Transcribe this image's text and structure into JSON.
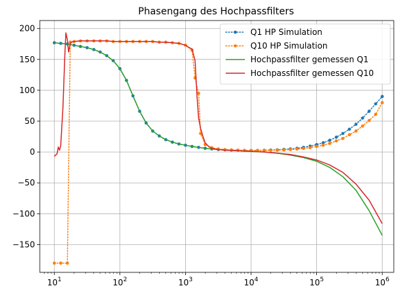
{
  "chart_data": {
    "type": "line",
    "title": "Phasengang des Hochpassfilters",
    "xlabel": "",
    "ylabel": "",
    "xscale": "log",
    "xlim": [
      6,
      1500000
    ],
    "ylim": [
      -195,
      213
    ],
    "x_ticks": [
      {
        "value": 10,
        "base": "10",
        "exp": "1"
      },
      {
        "value": 100,
        "base": "10",
        "exp": "2"
      },
      {
        "value": 1000,
        "base": "10",
        "exp": "3"
      },
      {
        "value": 10000,
        "base": "10",
        "exp": "4"
      },
      {
        "value": 100000,
        "base": "10",
        "exp": "5"
      },
      {
        "value": 1000000,
        "base": "10",
        "exp": "6"
      }
    ],
    "y_ticks": [
      {
        "value": 200,
        "label": "200"
      },
      {
        "value": 150,
        "label": "150"
      },
      {
        "value": 100,
        "label": "100"
      },
      {
        "value": 50,
        "label": "50"
      },
      {
        "value": 0,
        "label": "0"
      },
      {
        "value": -50,
        "label": "−50"
      },
      {
        "value": -100,
        "label": "−100"
      },
      {
        "value": -150,
        "label": "−150"
      }
    ],
    "grid": true,
    "legend_position": "top-right",
    "series": [
      {
        "name": "Q1 HP Simulation",
        "color": "#1f77b4",
        "style": "dotted-markers",
        "x": [
          10,
          12.5,
          15.8,
          20,
          25,
          31.6,
          40,
          50,
          63,
          79,
          100,
          126,
          158,
          200,
          251,
          316,
          398,
          501,
          631,
          794,
          1000,
          1259,
          1585,
          1995,
          2512,
          3162,
          3981,
          5012,
          6310,
          7943,
          10000,
          12589,
          15849,
          19953,
          25119,
          31623,
          39811,
          50119,
          63096,
          79433,
          100000,
          125893,
          158489,
          199526,
          251189,
          316228,
          398107,
          501187,
          630957,
          794328,
          1000000
        ],
        "y": [
          177,
          176,
          175,
          173,
          171,
          169,
          166,
          162,
          156,
          148,
          135,
          116,
          91,
          66,
          47,
          34,
          26,
          20,
          16,
          13,
          11,
          9,
          7.5,
          6,
          5,
          4,
          3.5,
          3,
          2.8,
          2.6,
          2.5,
          2.6,
          2.8,
          3.2,
          3.6,
          4.2,
          5,
          6,
          7.5,
          9.5,
          12,
          15,
          19,
          24,
          30,
          37,
          45,
          55,
          66,
          78,
          90
        ]
      },
      {
        "name": "Q10 HP Simulation",
        "color": "#ff7f0e",
        "style": "dotted-markers",
        "x": [
          10,
          12.5,
          15.8,
          17.5,
          20,
          25,
          31.6,
          40,
          50,
          63,
          79,
          100,
          126,
          158,
          200,
          251,
          316,
          398,
          501,
          631,
          794,
          1000,
          1259,
          1400,
          1585,
          1700,
          1995,
          2512,
          3162,
          3981,
          5012,
          6310,
          7943,
          10000,
          12589,
          15849,
          19953,
          25119,
          31623,
          39811,
          50119,
          63096,
          79433,
          100000,
          125893,
          158489,
          199526,
          251189,
          316228,
          398107,
          501187,
          630957,
          794328,
          1000000
        ],
        "y": [
          -180,
          -180,
          -180,
          178,
          179,
          180,
          180,
          180,
          180,
          180,
          179,
          179,
          179,
          179,
          179,
          179,
          179,
          178,
          178,
          177,
          176,
          173,
          165,
          120,
          95,
          30,
          12,
          7,
          5,
          4,
          3.5,
          3,
          2.7,
          2.5,
          2.4,
          2.5,
          2.7,
          3,
          3.4,
          4,
          4.8,
          5.8,
          7,
          9,
          11,
          14,
          18,
          22,
          28,
          34,
          42,
          51,
          61,
          80
        ]
      },
      {
        "name": "Hochpassfilter gemessen Q1",
        "color": "#2ca02c",
        "style": "solid",
        "x": [
          10,
          12.5,
          15.8,
          20,
          25,
          31.6,
          40,
          50,
          63,
          79,
          100,
          126,
          158,
          200,
          251,
          316,
          398,
          501,
          631,
          794,
          1000,
          1259,
          1585,
          1995,
          2512,
          3162,
          3981,
          5012,
          6310,
          7943,
          10000,
          15849,
          25119,
          39811,
          63096,
          100000,
          158489,
          251189,
          398107,
          630957,
          1000000
        ],
        "y": [
          177,
          176,
          175,
          173,
          171,
          169,
          166,
          162,
          156,
          148,
          135,
          116,
          91,
          66,
          47,
          34,
          26,
          20,
          16,
          13,
          11,
          9,
          7.5,
          6,
          5,
          4,
          3.2,
          2.5,
          2,
          1.5,
          1,
          0,
          -2,
          -5,
          -9,
          -15,
          -25,
          -40,
          -62,
          -95,
          -135
        ]
      },
      {
        "name": "Hochpassfilter gemessen Q10",
        "color": "#d62728",
        "style": "solid",
        "x": [
          10,
          11,
          11.5,
          12,
          12.5,
          13.5,
          14.5,
          15,
          15.8,
          16.5,
          17.5,
          18.5,
          20,
          25,
          31.6,
          40,
          50,
          63,
          79,
          100,
          126,
          158,
          200,
          251,
          316,
          398,
          501,
          631,
          794,
          1000,
          1100,
          1259,
          1400,
          1500,
          1585,
          1700,
          1850,
          1995,
          2250,
          2512,
          3162,
          3981,
          5012,
          6310,
          7943,
          10000,
          15849,
          25119,
          39811,
          63096,
          100000,
          158489,
          251189,
          398107,
          630957,
          1000000
        ],
        "y": [
          -7,
          -3,
          8,
          3,
          10,
          70,
          160,
          193,
          182,
          162,
          176,
          178,
          179,
          180,
          180,
          180,
          180,
          180,
          179,
          179,
          179,
          179,
          179,
          179,
          179,
          178,
          178,
          177,
          176,
          173,
          170,
          167,
          148,
          90,
          55,
          38,
          25,
          15,
          9,
          6,
          4,
          3,
          2.5,
          2,
          1.5,
          1,
          0,
          -2,
          -4,
          -8,
          -13,
          -21,
          -33,
          -52,
          -78,
          -116
        ]
      }
    ]
  }
}
